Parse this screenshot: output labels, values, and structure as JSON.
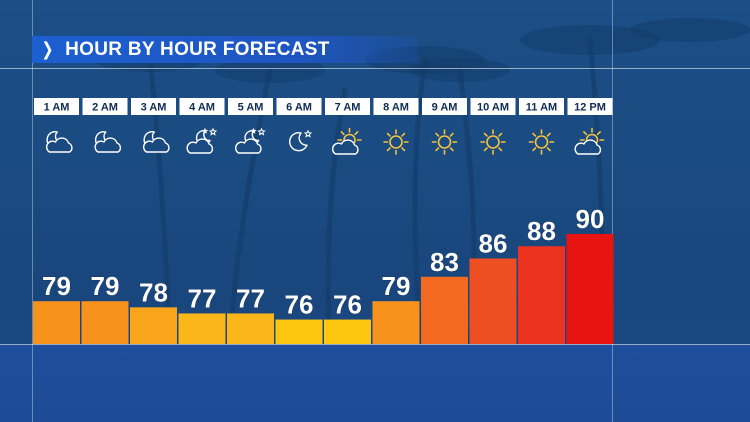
{
  "header": {
    "title": "HOUR BY HOUR FORECAST"
  },
  "colors": {
    "hot": "#e8140f",
    "warm": "#f7911e",
    "mild": "#fdc60f",
    "label_bg": "#ffffff",
    "label_text": "#0f2c55"
  },
  "chart_data": {
    "type": "bar",
    "categories": [
      "1 AM",
      "2 AM",
      "3 AM",
      "4 AM",
      "5 AM",
      "6 AM",
      "7 AM",
      "8 AM",
      "9 AM",
      "10 AM",
      "11 AM",
      "12 PM"
    ],
    "values": [
      79,
      79,
      78,
      77,
      77,
      76,
      76,
      79,
      83,
      86,
      88,
      90
    ],
    "icons": [
      "moon-cloud-icon",
      "moon-cloud-icon",
      "moon-cloud-icon",
      "moon-stars-cloud-icon",
      "moon-stars-cloud-icon",
      "moon-stars-icon",
      "sun-cloud-icon",
      "sun-icon",
      "sun-icon",
      "sun-icon",
      "sun-icon",
      "sun-cloud-icon"
    ],
    "bar_colors": [
      "#f7921d",
      "#f7921d",
      "#f9a51b",
      "#fbb61a",
      "#fbb61a",
      "#fdc60f",
      "#fdc60f",
      "#f7921d",
      "#f26a20",
      "#ee4f22",
      "#eb3320",
      "#e8140f"
    ],
    "title": "HOUR BY HOUR FORECAST",
    "xlabel": "",
    "ylabel": "",
    "grid": false,
    "legend": "none"
  }
}
